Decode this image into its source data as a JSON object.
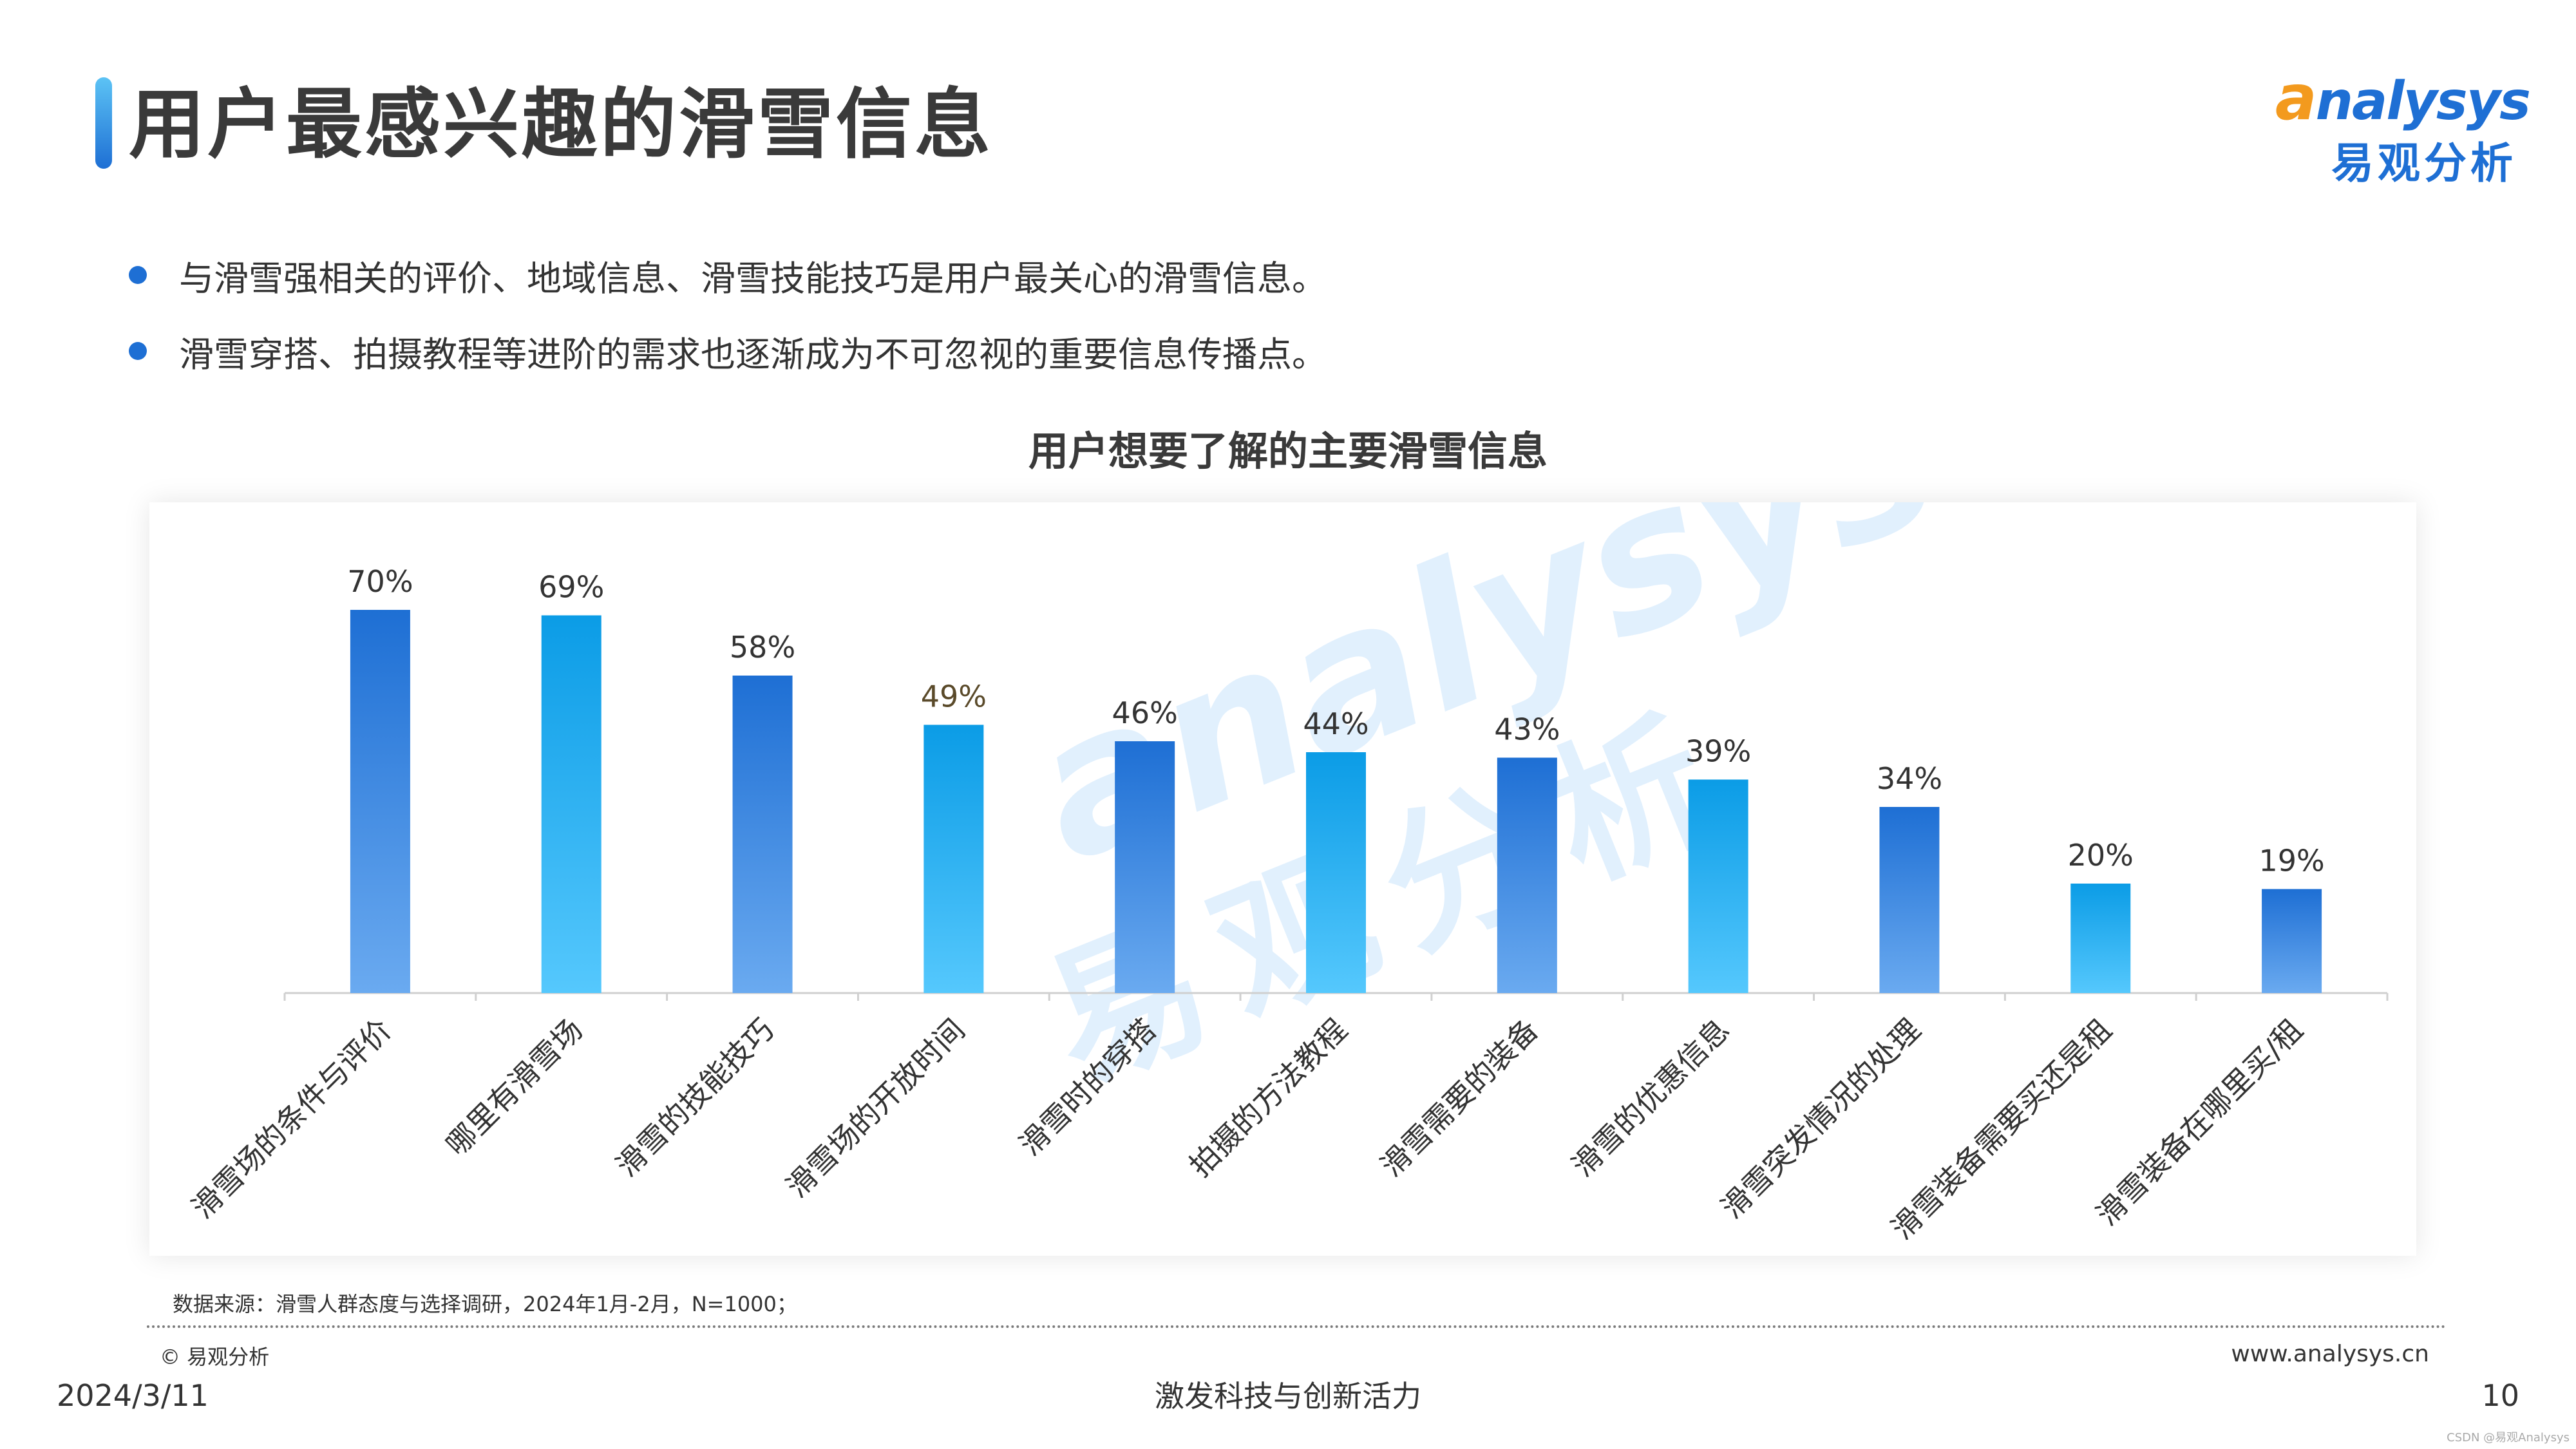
{
  "page": {
    "title": "用户最感兴趣的滑雪信息",
    "logo_en": "nalysys",
    "logo_a": "a",
    "logo_cn": "易观分析",
    "bullets": [
      "与滑雪强相关的评价、地域信息、滑雪技能技巧是用户最关心的滑雪信息。",
      "滑雪穿搭、拍摄教程等进阶的需求也逐渐成为不可忽视的重要信息传播点。"
    ],
    "source": "数据来源：滑雪人群态度与选择调研，2024年1月-2月，N=1000；",
    "copyright": "© 易观分析",
    "website": "www.analysys.cn",
    "date": "2024/3/11",
    "slogan": "激发科技与创新活力",
    "page_number": "10",
    "credit": "CSDN @易观Analysys",
    "watermark_en": "analysys",
    "watermark_cn": "易观分析"
  },
  "chart_data": {
    "type": "bar",
    "title": "用户想要了解的主要滑雪信息",
    "categories": [
      "滑雪场的条件与评价",
      "哪里有滑雪场",
      "滑雪的技能技巧",
      "滑雪场的开放时间",
      "滑雪时的穿搭",
      "拍摄的方法教程",
      "滑雪需要的装备",
      "滑雪的优惠信息",
      "滑雪突发情况的处理",
      "滑雪装备需要买还是租",
      "滑雪装备在哪里买/租"
    ],
    "values": [
      70,
      69,
      58,
      49,
      46,
      44,
      43,
      39,
      34,
      20,
      19
    ],
    "labels": [
      "70%",
      "69%",
      "58%",
      "49%",
      "46%",
      "44%",
      "43%",
      "39%",
      "34%",
      "20%",
      "19%"
    ],
    "ylim": [
      0,
      100
    ],
    "grid": false,
    "colors": {
      "dark_blue": [
        "#1e6fd4",
        "#6aaaf0"
      ],
      "light_blue": [
        "#0b9ce6",
        "#55c8fd"
      ]
    }
  }
}
